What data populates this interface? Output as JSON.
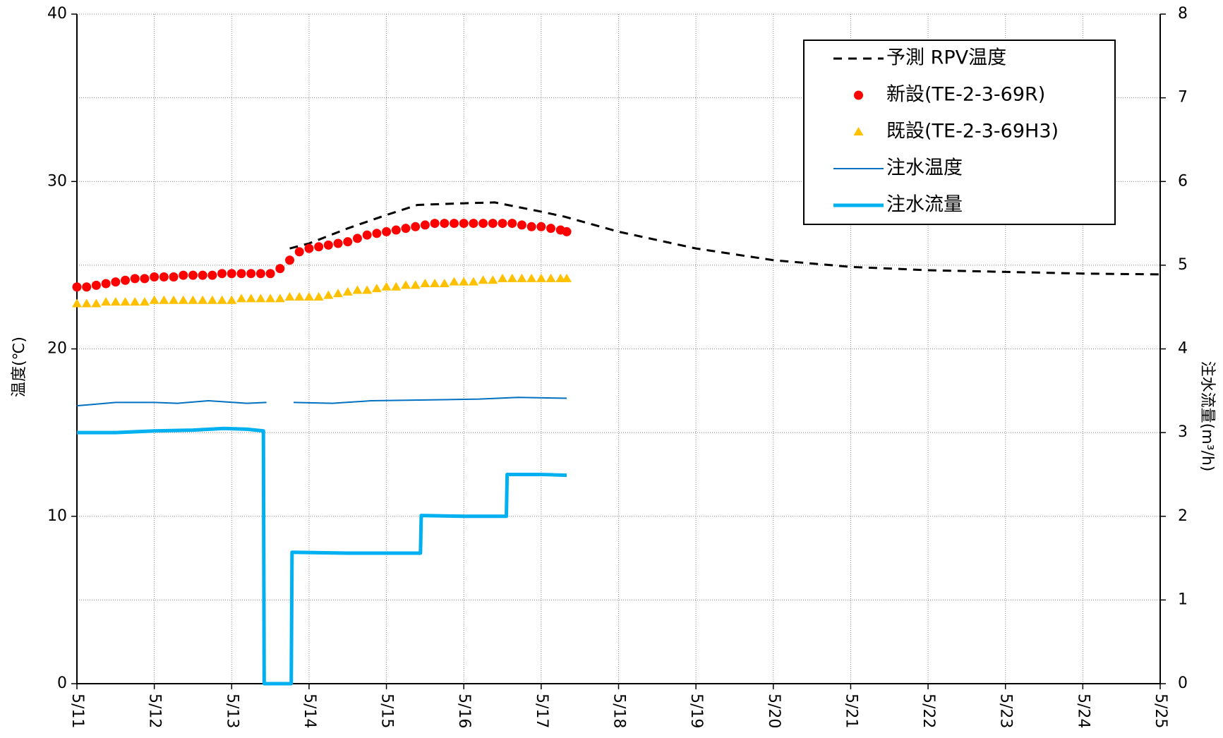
{
  "chart_data": {
    "type": "mixed",
    "ylabel": "温度(℃)",
    "y2label": "注水流量(m³/h)",
    "xlim": [
      11,
      25
    ],
    "xticks": [
      {
        "value": 11,
        "label": "5/11"
      },
      {
        "value": 12,
        "label": "5/12"
      },
      {
        "value": 13,
        "label": "5/13"
      },
      {
        "value": 14,
        "label": "5/14"
      },
      {
        "value": 15,
        "label": "5/15"
      },
      {
        "value": 16,
        "label": "5/16"
      },
      {
        "value": 17,
        "label": "5/17"
      },
      {
        "value": 18,
        "label": "5/18"
      },
      {
        "value": 19,
        "label": "5/19"
      },
      {
        "value": 20,
        "label": "5/20"
      },
      {
        "value": 21,
        "label": "5/21"
      },
      {
        "value": 22,
        "label": "5/22"
      },
      {
        "value": 23,
        "label": "5/23"
      },
      {
        "value": 24,
        "label": "5/24"
      },
      {
        "value": 25,
        "label": "5/25"
      }
    ],
    "ylim": [
      0,
      40
    ],
    "yticks": [
      0,
      10,
      20,
      30,
      40
    ],
    "y2lim": [
      0,
      8
    ],
    "y2ticks": [
      0,
      1,
      2,
      3,
      4,
      5,
      6,
      7,
      8
    ],
    "grid": true,
    "legend": "upper right",
    "series": [
      {
        "name": "予測 RPV温度",
        "color": "#000000",
        "style": "dashed",
        "x": [
          13.75,
          14,
          14.5,
          15,
          15.4,
          16,
          16.4,
          17,
          17.3,
          18,
          19,
          20,
          21,
          22,
          23,
          24,
          25
        ],
        "values": [
          26.0,
          26.3,
          27.2,
          28.0,
          28.6,
          28.7,
          28.75,
          28.2,
          27.9,
          27.0,
          26.0,
          25.3,
          24.9,
          24.7,
          24.6,
          24.5,
          24.45
        ]
      },
      {
        "name": "新設(TE-2-3-69R)",
        "color": "#ff0000",
        "style": "circle",
        "x": [
          11,
          11.125,
          11.25,
          11.375,
          11.5,
          11.625,
          11.75,
          11.875,
          12,
          12.125,
          12.25,
          12.375,
          12.5,
          12.625,
          12.75,
          12.875,
          13,
          13.125,
          13.25,
          13.375,
          13.5,
          13.625,
          13.75,
          13.875,
          14,
          14.125,
          14.25,
          14.375,
          14.5,
          14.625,
          14.75,
          14.875,
          15,
          15.125,
          15.25,
          15.375,
          15.5,
          15.625,
          15.75,
          15.875,
          16,
          16.125,
          16.25,
          16.375,
          16.5,
          16.625,
          16.75,
          16.875,
          17,
          17.125,
          17.25,
          17.33
        ],
        "values": [
          23.7,
          23.7,
          23.8,
          23.9,
          24.0,
          24.1,
          24.2,
          24.2,
          24.3,
          24.3,
          24.3,
          24.4,
          24.4,
          24.4,
          24.4,
          24.5,
          24.5,
          24.5,
          24.5,
          24.5,
          24.5,
          24.8,
          25.3,
          25.8,
          26.0,
          26.1,
          26.2,
          26.3,
          26.4,
          26.6,
          26.8,
          26.9,
          27.0,
          27.1,
          27.2,
          27.3,
          27.4,
          27.5,
          27.5,
          27.5,
          27.5,
          27.5,
          27.5,
          27.5,
          27.5,
          27.5,
          27.4,
          27.3,
          27.3,
          27.2,
          27.1,
          27.0
        ]
      },
      {
        "name": "既設(TE-2-3-69H3)",
        "color": "#ffc000",
        "style": "triangle",
        "x": [
          11,
          11.125,
          11.25,
          11.375,
          11.5,
          11.625,
          11.75,
          11.875,
          12,
          12.125,
          12.25,
          12.375,
          12.5,
          12.625,
          12.75,
          12.875,
          13,
          13.125,
          13.25,
          13.375,
          13.5,
          13.625,
          13.75,
          13.875,
          14,
          14.125,
          14.25,
          14.375,
          14.5,
          14.625,
          14.75,
          14.875,
          15,
          15.125,
          15.25,
          15.375,
          15.5,
          15.625,
          15.75,
          15.875,
          16,
          16.125,
          16.25,
          16.375,
          16.5,
          16.625,
          16.75,
          16.875,
          17,
          17.125,
          17.25,
          17.33
        ],
        "values": [
          22.7,
          22.7,
          22.7,
          22.8,
          22.8,
          22.8,
          22.8,
          22.8,
          22.9,
          22.9,
          22.9,
          22.9,
          22.9,
          22.9,
          22.9,
          22.9,
          22.9,
          23.0,
          23.0,
          23.0,
          23.0,
          23.0,
          23.1,
          23.1,
          23.1,
          23.1,
          23.2,
          23.3,
          23.4,
          23.5,
          23.5,
          23.6,
          23.7,
          23.7,
          23.8,
          23.8,
          23.9,
          23.9,
          23.9,
          24.0,
          24.0,
          24.0,
          24.1,
          24.1,
          24.2,
          24.2,
          24.2,
          24.2,
          24.2,
          24.2,
          24.2,
          24.2
        ]
      },
      {
        "name": "注水温度",
        "color": "#0070c0",
        "style": "thin",
        "x": [
          11,
          11.5,
          12,
          12.3,
          12.7,
          13.2,
          13.45,
          13.6,
          13.8,
          14.3,
          14.8,
          15.5,
          16.2,
          16.7,
          17.33
        ],
        "values": [
          16.6,
          16.8,
          16.8,
          16.75,
          16.9,
          16.75,
          16.8,
          null,
          16.8,
          16.75,
          16.9,
          16.95,
          17.0,
          17.1,
          17.05
        ]
      },
      {
        "name": "注水流量",
        "color": "#00b0f0",
        "style": "thick",
        "axis": "y2",
        "x": [
          11,
          11.5,
          12,
          12.5,
          12.9,
          13.2,
          13.41,
          13.42,
          13.77,
          13.78,
          14.5,
          15.44,
          15.45,
          16.0,
          16.55,
          16.56,
          17.0,
          17.33
        ],
        "values": [
          3.0,
          3.0,
          3.02,
          3.03,
          3.05,
          3.04,
          3.02,
          0,
          0,
          1.57,
          1.56,
          1.56,
          2.01,
          2.0,
          2.0,
          2.5,
          2.5,
          2.49
        ]
      }
    ]
  }
}
